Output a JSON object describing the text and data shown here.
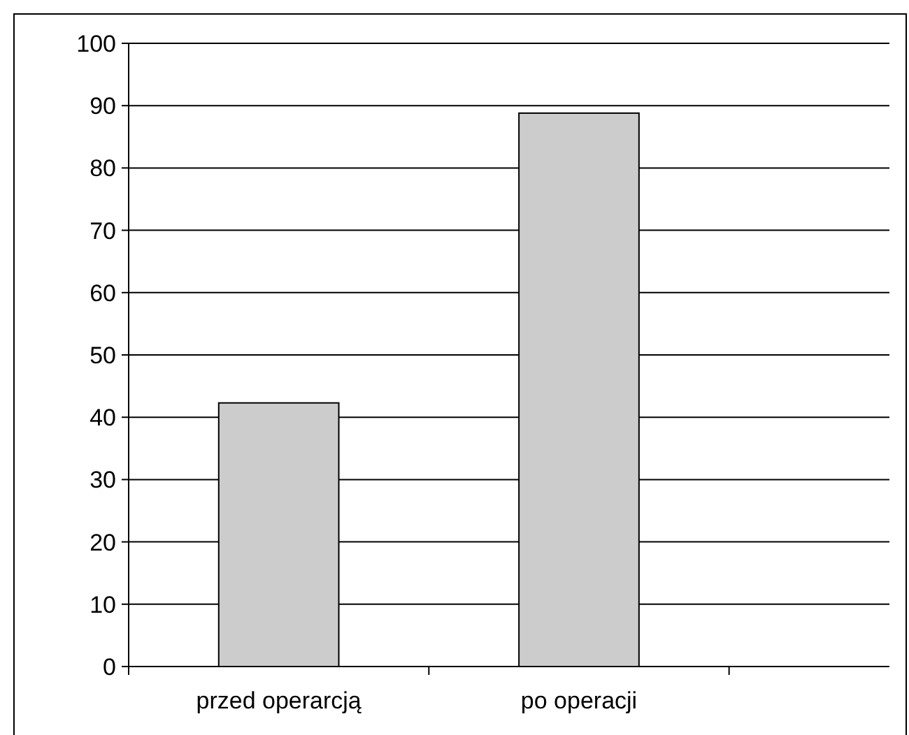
{
  "chart_data": {
    "type": "bar",
    "categories": [
      "przed operarcją",
      "po operacji",
      null
    ],
    "values": [
      42.3,
      88.8,
      null
    ],
    "color": "#cccccc",
    "ylim": [
      0,
      100
    ],
    "yticks": [
      0,
      10,
      20,
      30,
      40,
      50,
      60,
      70,
      80,
      90,
      100
    ],
    "grid": "y"
  }
}
